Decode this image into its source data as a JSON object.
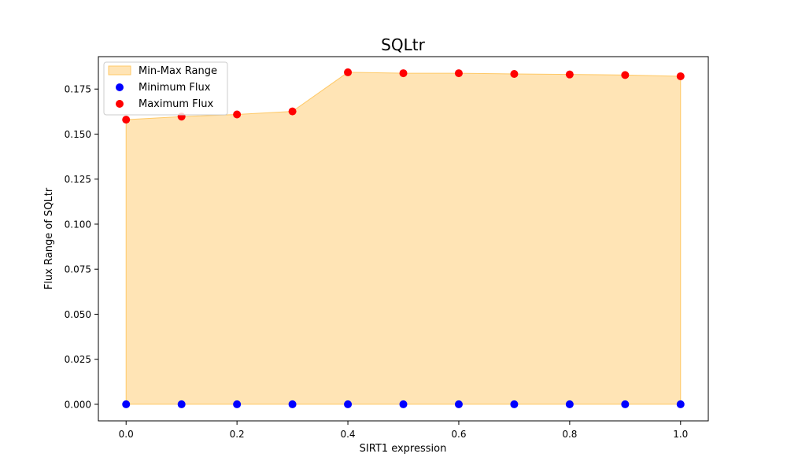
{
  "chart_data": {
    "type": "scatter",
    "title": "SQLtr",
    "xlabel": "SIRT1 expression",
    "ylabel": "Flux Range of SQLtr",
    "x": [
      0.0,
      0.1,
      0.2,
      0.3,
      0.4,
      0.5,
      0.6,
      0.7,
      0.8,
      0.9,
      1.0
    ],
    "series": [
      {
        "name": "Minimum Flux",
        "color": "#0000ff",
        "values": [
          0,
          0,
          0,
          0,
          0,
          0,
          0,
          0,
          0,
          0,
          0
        ]
      },
      {
        "name": "Maximum Flux",
        "color": "#ff0000",
        "values": [
          0.158,
          0.1597,
          0.1609,
          0.1626,
          0.1843,
          0.1838,
          0.1838,
          0.1834,
          0.1831,
          0.1828,
          0.1821
        ]
      }
    ],
    "fill": {
      "name": "Min-Max Range",
      "color": "#ffe4b5",
      "edge_color": "#ffc966"
    },
    "xlim": [
      -0.05,
      1.05
    ],
    "ylim": [
      -0.0092,
      0.193
    ],
    "xticks": [
      0.0,
      0.2,
      0.4,
      0.6,
      0.8,
      1.0
    ],
    "xtick_labels": [
      "0.0",
      "0.2",
      "0.4",
      "0.6",
      "0.8",
      "1.0"
    ],
    "yticks": [
      0.0,
      0.025,
      0.05,
      0.075,
      0.1,
      0.125,
      0.15,
      0.175
    ],
    "ytick_labels": [
      "0.000",
      "0.025",
      "0.050",
      "0.075",
      "0.100",
      "0.125",
      "0.150",
      "0.175"
    ],
    "grid": false,
    "legend_position": "top-left"
  }
}
